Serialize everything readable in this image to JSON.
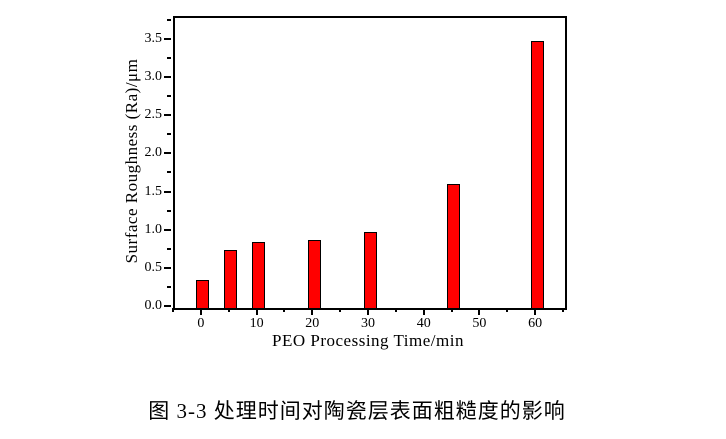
{
  "caption": "图 3-3 处理时间对陶瓷层表面粗糙度的影响",
  "chart_data": {
    "type": "bar",
    "x": [
      0,
      5,
      10,
      20,
      30,
      45,
      60
    ],
    "values": [
      0.37,
      0.76,
      0.87,
      0.89,
      0.99,
      1.62,
      3.5
    ],
    "title": "",
    "xlabel": "PEO Processing Time/min",
    "ylabel": "Surface Roughness (Ra)/μm",
    "xlim": [
      -5,
      65
    ],
    "ylim": [
      0,
      3.8
    ],
    "x_major_ticks": [
      0,
      10,
      20,
      30,
      40,
      50,
      60
    ],
    "x_minor_ticks": [
      -5,
      5,
      15,
      25,
      35,
      45,
      55,
      65
    ],
    "y_major_ticks": [
      0,
      0.5,
      1,
      1.5,
      2,
      2.5,
      3,
      3.5
    ],
    "y_minor_ticks": [
      0.25,
      0.75,
      1.25,
      1.75,
      2.25,
      2.75,
      3.25,
      3.75
    ],
    "grid": false,
    "legend": "none",
    "bar_color": "#ff0000",
    "bar_border_color": "#000000",
    "frame_color": "#000000"
  }
}
